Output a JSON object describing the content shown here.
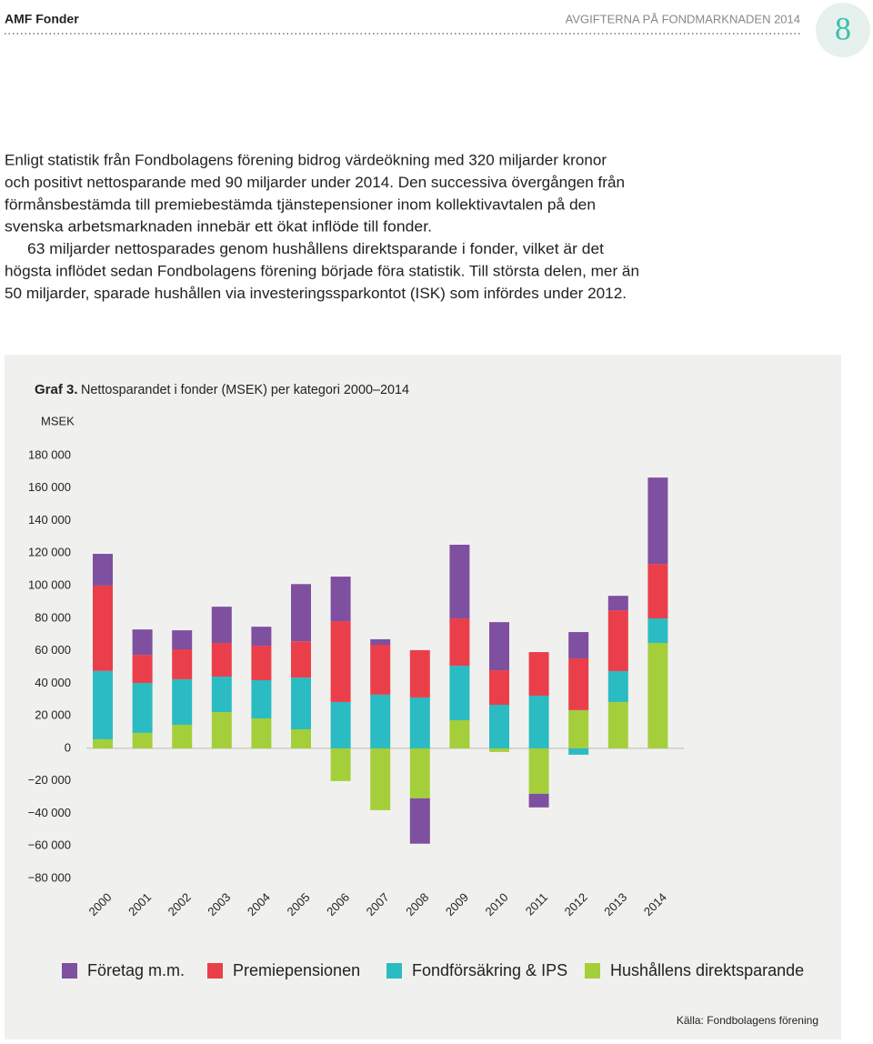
{
  "header": {
    "left": "AMF Fonder",
    "right": "AVGIFTERNA PÅ FONDMARKNADEN 2014",
    "page_number": "8"
  },
  "body": {
    "lines": [
      "Enligt statistik från Fondbolagens förening bidrog värdeökning med 320 miljarder kronor",
      "och positivt nettosparande med 90 miljarder under 2014. Den successiva övergången från",
      "förmånsbestämda till premiebestämda tjänstepensioner inom kollektivavtalen på den",
      "svenska arbetsmarknaden innebär ett ökat inflöde till fonder.",
      "63 miljarder nettosparades genom hushållens direktsparande i fonder, vilket är det",
      "högsta inflödet sedan Fondbolagens förening började föra statistik. Till största delen, mer än",
      "50 miljarder, sparade hushållen via investeringssparkontot (ISK) som infördes under 2012."
    ]
  },
  "chart_data": {
    "type": "stacked_bar",
    "title_label": "Graf 3.",
    "title": "Nettosparandet i fonder (MSEK) per kategori 2000–2014",
    "y_label": "MSEK",
    "source": "Källa: Fondbolagens förening",
    "categories": [
      "2000",
      "2001",
      "2002",
      "2003",
      "2004",
      "2005",
      "2006",
      "2007",
      "2008",
      "2009",
      "2010",
      "2011",
      "2012",
      "2013",
      "2014"
    ],
    "series": [
      {
        "name": "Företag m.m.",
        "color": "#7f4fa0",
        "values": [
          19500,
          15600,
          11700,
          22300,
          11700,
          35200,
          27400,
          3400,
          -27900,
          45300,
          29600,
          -8400,
          16200,
          8900,
          53100
        ]
      },
      {
        "name": "Premiepensionen",
        "color": "#ea3f4a",
        "values": [
          52500,
          17300,
          18400,
          20700,
          21200,
          22300,
          49700,
          30700,
          29100,
          29100,
          21200,
          26800,
          31800,
          37400,
          33500
        ]
      },
      {
        "name": "Fondförsäkring & IPS",
        "color": "#2abcc2",
        "values": [
          42000,
          30700,
          28000,
          21800,
          23500,
          31800,
          28500,
          33000,
          31300,
          33500,
          26800,
          32400,
          -3900,
          19000,
          15100
        ]
      },
      {
        "name": "Hushållens direktsparande",
        "color": "#a5cf3a",
        "values": [
          5600,
          9500,
          14500,
          22300,
          18400,
          11700,
          -20100,
          -38000,
          -30700,
          17300,
          -2200,
          -27900,
          23500,
          28500,
          64800
        ]
      }
    ],
    "ylim": [
      -80000,
      180000
    ],
    "yticks": [
      {
        "value": -80000,
        "label": "−80 000"
      },
      {
        "value": -60000,
        "label": "−60 000"
      },
      {
        "value": -40000,
        "label": "−40 000"
      },
      {
        "value": -20000,
        "label": "−20 000"
      },
      0,
      {
        "value": 20000,
        "label": "20 000"
      },
      {
        "value": 40000,
        "label": "40 000"
      },
      {
        "value": 60000,
        "label": "60 000"
      },
      {
        "value": 80000,
        "label": "80 000"
      },
      {
        "value": 100000,
        "label": "100 000"
      },
      {
        "value": 120000,
        "label": "120 000"
      },
      {
        "value": 140000,
        "label": "140 000"
      },
      {
        "value": 160000,
        "label": "160 000"
      },
      {
        "value": 180000,
        "label": "180 000"
      }
    ]
  }
}
